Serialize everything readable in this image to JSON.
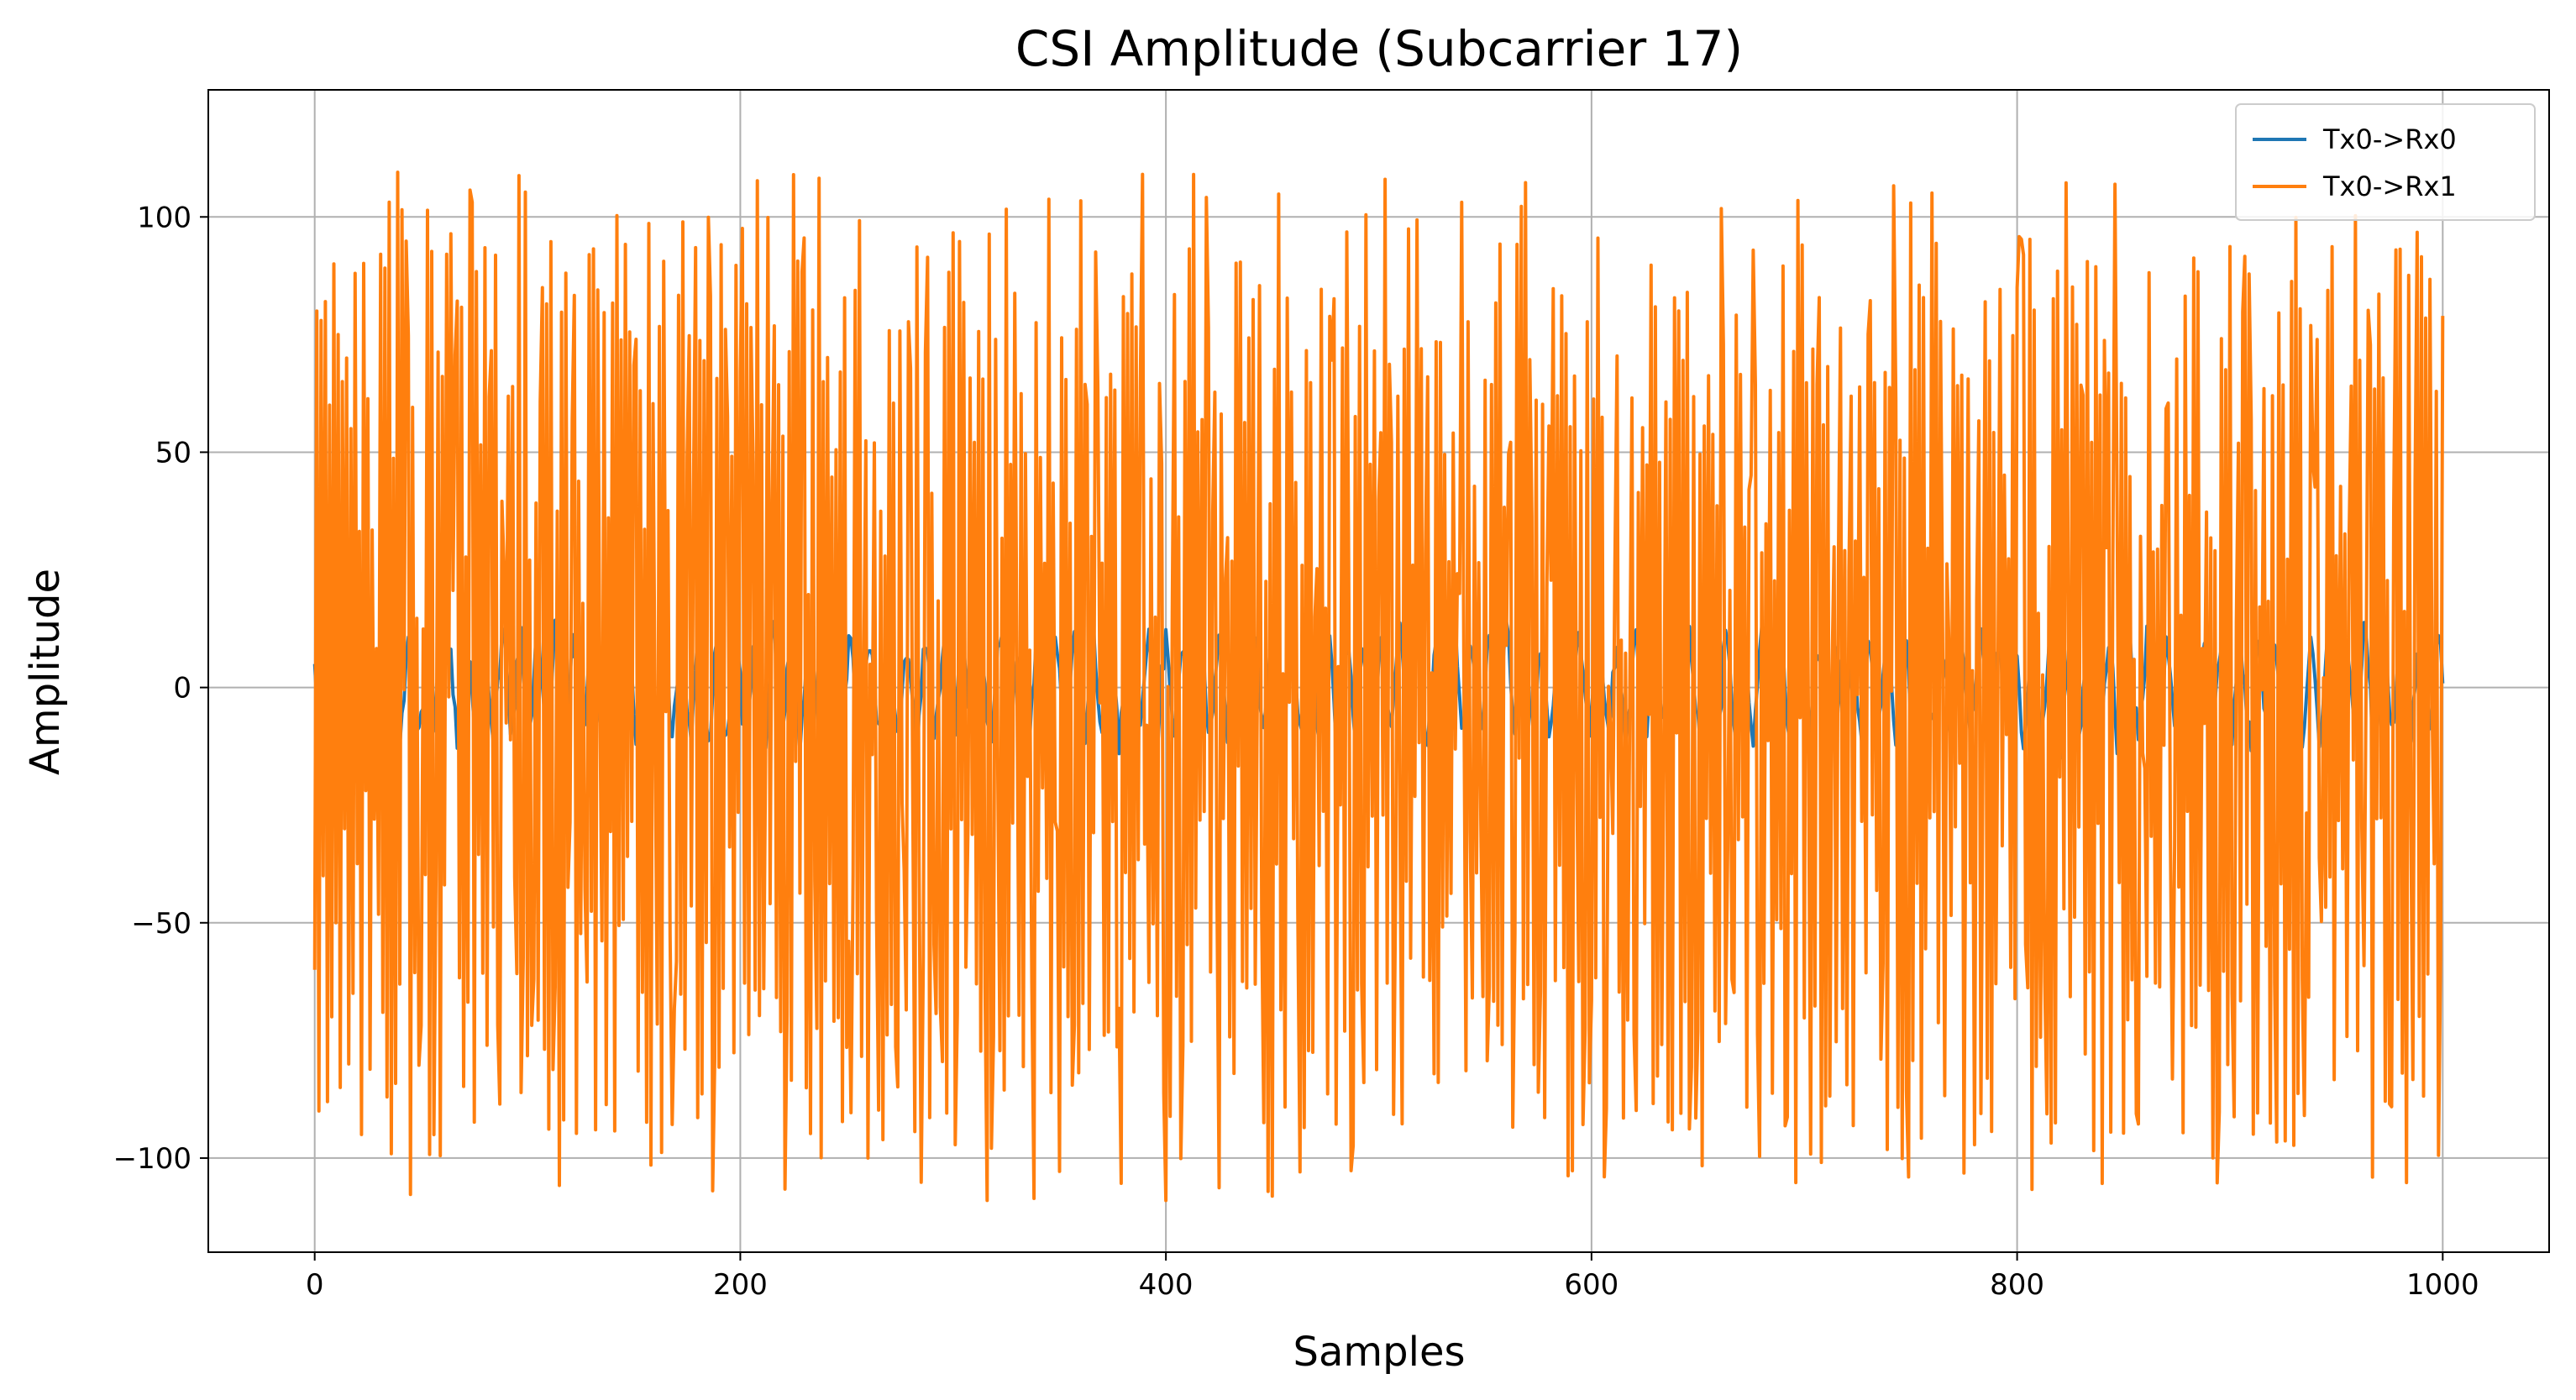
{
  "chart_data": {
    "type": "line",
    "title": "CSI Amplitude (Subcarrier 17)",
    "xlabel": "Samples",
    "ylabel": "Amplitude",
    "xlim": [
      -50,
      1050
    ],
    "ylim": [
      -120,
      127
    ],
    "xticks": [
      0,
      200,
      400,
      600,
      800,
      1000
    ],
    "yticks": [
      -100,
      -50,
      0,
      50,
      100
    ],
    "xtick_labels": [
      "0",
      "200",
      "400",
      "600",
      "800",
      "1000"
    ],
    "ytick_labels": [
      "−100",
      "−50",
      "0",
      "50",
      "100"
    ],
    "grid": true,
    "legend_position": "top-right",
    "n_samples": 1000,
    "series": [
      {
        "name": "Tx0->Rx0",
        "color": "#1f77b4",
        "amplitude_range": [
          -20,
          21
        ],
        "values": [
          5,
          -3,
          8,
          -6,
          4,
          7,
          -9,
          2,
          6,
          -4,
          3,
          -2,
          9,
          -8,
          1,
          5,
          -7,
          4,
          -3,
          6
        ]
      },
      {
        "name": "Tx0->Rx1",
        "color": "#ff7f0e",
        "amplitude_range": [
          -109,
          116
        ],
        "values": [
          -60,
          80,
          -90,
          78,
          -40,
          82,
          -88,
          60,
          -70,
          90,
          -50,
          75,
          -85,
          65,
          -30,
          70,
          -80,
          55,
          -65,
          88
        ]
      }
    ]
  }
}
